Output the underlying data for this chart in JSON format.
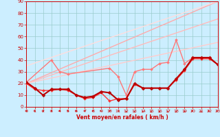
{
  "xlabel": "Vent moyen/en rafales ( km/h )",
  "xlim": [
    0,
    23
  ],
  "ylim": [
    0,
    90
  ],
  "yticks": [
    0,
    10,
    20,
    30,
    40,
    50,
    60,
    70,
    80,
    90
  ],
  "xticks": [
    0,
    1,
    2,
    3,
    4,
    5,
    6,
    7,
    8,
    9,
    10,
    11,
    12,
    13,
    14,
    15,
    16,
    17,
    18,
    19,
    20,
    21,
    22,
    23
  ],
  "bg_color": "#cceeff",
  "grid_color": "#99cccc",
  "series": [
    {
      "x": [
        0,
        1,
        2,
        3,
        4,
        5,
        6,
        7,
        8,
        9,
        10,
        11,
        12,
        13,
        14,
        15,
        16,
        17,
        18,
        19,
        20,
        21,
        22,
        23
      ],
      "y": [
        21,
        16,
        10,
        15,
        15,
        15,
        10,
        8,
        9,
        13,
        12,
        6,
        7,
        20,
        16,
        16,
        16,
        16,
        24,
        32,
        42,
        42,
        42,
        36
      ],
      "color": "#bb0000",
      "lw": 1.5,
      "marker": "D",
      "ms": 2.5,
      "zorder": 5
    },
    {
      "x": [
        0,
        1,
        2,
        3,
        4,
        5,
        6,
        7,
        8,
        9,
        10,
        11,
        12,
        13,
        14,
        15,
        16,
        17,
        18,
        19,
        20,
        21,
        22,
        23
      ],
      "y": [
        20,
        15,
        14,
        14,
        15,
        14,
        10,
        7,
        8,
        12,
        5,
        7,
        7,
        19,
        16,
        16,
        16,
        16,
        23,
        31,
        41,
        41,
        41,
        36
      ],
      "color": "#ff3333",
      "lw": 1.0,
      "marker": "D",
      "ms": 2.0,
      "zorder": 4
    },
    {
      "x": [
        0,
        3,
        4,
        5,
        10,
        11,
        12,
        13,
        14,
        15,
        16,
        17,
        18,
        19,
        20,
        21,
        22,
        23
      ],
      "y": [
        21,
        40,
        30,
        28,
        33,
        26,
        10,
        30,
        32,
        32,
        37,
        38,
        57,
        37,
        42,
        42,
        42,
        36
      ],
      "color": "#ff7777",
      "lw": 1.0,
      "marker": "D",
      "ms": 2.0,
      "zorder": 3
    },
    {
      "x": [
        0,
        23
      ],
      "y": [
        20,
        90
      ],
      "color": "#ffaaaa",
      "lw": 1.0,
      "marker": null,
      "ms": 0,
      "zorder": 2
    },
    {
      "x": [
        0,
        23
      ],
      "y": [
        20,
        75
      ],
      "color": "#ffbbbb",
      "lw": 1.0,
      "marker": null,
      "ms": 0,
      "zorder": 2
    },
    {
      "x": [
        0,
        23
      ],
      "y": [
        20,
        55
      ],
      "color": "#ffcccc",
      "lw": 1.0,
      "marker": null,
      "ms": 0,
      "zorder": 2
    },
    {
      "x": [
        0,
        23
      ],
      "y": [
        35,
        90
      ],
      "color": "#ffdddd",
      "lw": 1.0,
      "marker": null,
      "ms": 0,
      "zorder": 2
    }
  ],
  "wind_arrows": [
    [
      0,
      0
    ],
    [
      1,
      0
    ],
    [
      2,
      0
    ],
    [
      3,
      0
    ],
    [
      4,
      0
    ],
    [
      5,
      0
    ],
    [
      6,
      0
    ],
    [
      7,
      22
    ],
    [
      8,
      22
    ],
    [
      9,
      45
    ],
    [
      10,
      67
    ],
    [
      11,
      135
    ],
    [
      12,
      90
    ],
    [
      13,
      90
    ],
    [
      14,
      90
    ],
    [
      15,
      90
    ],
    [
      16,
      90
    ],
    [
      17,
      90
    ],
    [
      18,
      90
    ],
    [
      19,
      90
    ],
    [
      20,
      45
    ],
    [
      21,
      90
    ],
    [
      22,
      45
    ],
    [
      23,
      45
    ]
  ]
}
